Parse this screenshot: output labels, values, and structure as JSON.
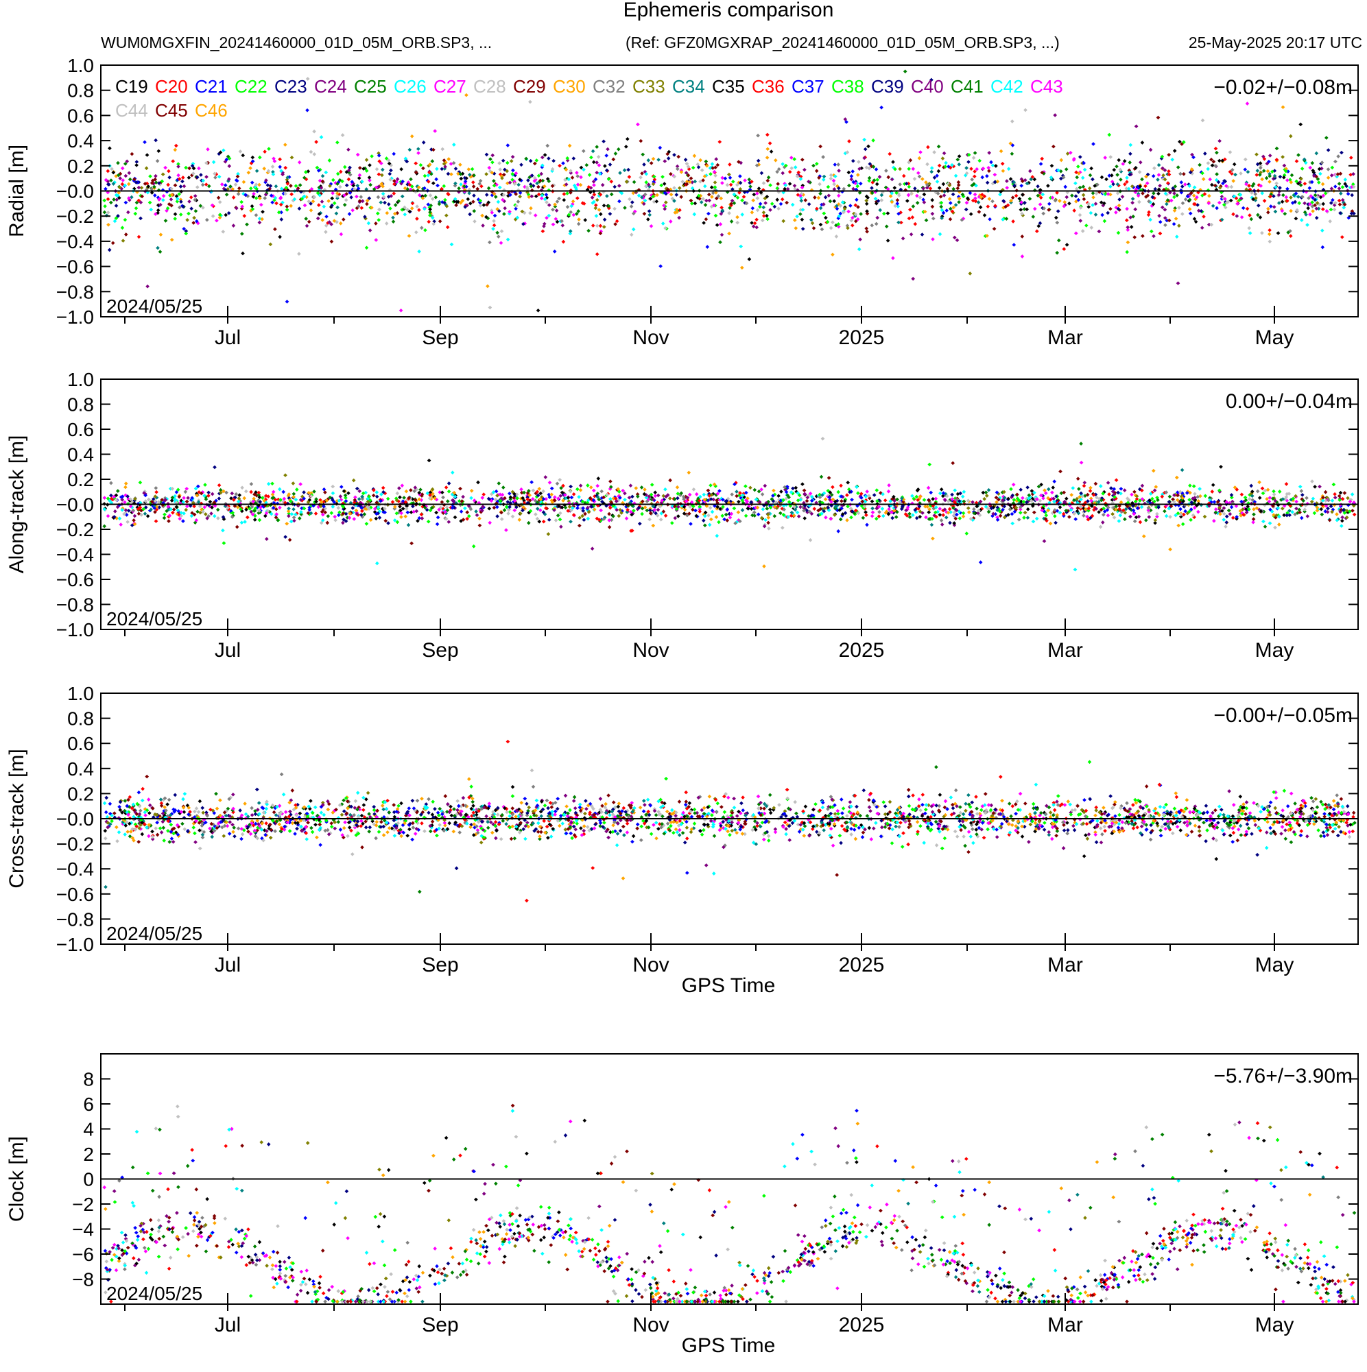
{
  "header": {
    "title": "Ephemeris comparison",
    "product": "WUM0MGXFIN_20241460000_01D_05M_ORB.SP3, ...",
    "reference": "(Ref: GFZ0MGXRAP_20241460000_01D_05M_ORB.SP3, ...)",
    "generated": "25-May-2025 20:17 UTC"
  },
  "legend": {
    "entries": [
      {
        "name": "C19",
        "color": "#000000"
      },
      {
        "name": "C20",
        "color": "#ff0000"
      },
      {
        "name": "C21",
        "color": "#0000ff"
      },
      {
        "name": "C22",
        "color": "#00ff00"
      },
      {
        "name": "C23",
        "color": "#000080"
      },
      {
        "name": "C24",
        "color": "#800080"
      },
      {
        "name": "C25",
        "color": "#008000"
      },
      {
        "name": "C26",
        "color": "#00ffff"
      },
      {
        "name": "C27",
        "color": "#ff00ff"
      },
      {
        "name": "C28",
        "color": "#c0c0c0"
      },
      {
        "name": "C29",
        "color": "#800000"
      },
      {
        "name": "C30",
        "color": "#ffa500"
      },
      {
        "name": "C32",
        "color": "#808080"
      },
      {
        "name": "C33",
        "color": "#808000"
      },
      {
        "name": "C34",
        "color": "#008080"
      },
      {
        "name": "C35",
        "color": "#000000"
      },
      {
        "name": "C36",
        "color": "#ff0000"
      },
      {
        "name": "C37",
        "color": "#0000ff"
      },
      {
        "name": "C38",
        "color": "#00ff00"
      },
      {
        "name": "C39",
        "color": "#000080"
      },
      {
        "name": "C40",
        "color": "#800080"
      },
      {
        "name": "C41",
        "color": "#008000"
      },
      {
        "name": "C42",
        "color": "#00ffff"
      },
      {
        "name": "C43",
        "color": "#ff00ff"
      },
      {
        "name": "C44",
        "color": "#c0c0c0"
      },
      {
        "name": "C45",
        "color": "#800000"
      },
      {
        "name": "C46",
        "color": "#ffa500"
      }
    ]
  },
  "chart_data": [
    {
      "type": "scatter",
      "ylabel": "Radial [m]",
      "xlabel": "",
      "ylim": [
        -1.0,
        1.0
      ],
      "yticks": [
        "1.0",
        "0.8",
        "0.6",
        "0.4",
        "0.2",
        "-0.0",
        "-0.2",
        "-0.4",
        "-0.6",
        "-0.8",
        "-1.0"
      ],
      "xtick_labels": [
        "Jul",
        "Sep",
        "Nov",
        "2025",
        "Mar",
        "May"
      ],
      "xlim": [
        "2024-05-25",
        "2025-05-25"
      ],
      "start_label": "2024/05/25",
      "stat": "-0.02+/-0.08m",
      "spread_m": 0.16
    },
    {
      "type": "scatter",
      "ylabel": "Along-track [m]",
      "xlabel": "",
      "ylim": [
        -1.0,
        1.0
      ],
      "yticks": [
        "1.0",
        "0.8",
        "0.6",
        "0.4",
        "0.2",
        "-0.0",
        "-0.2",
        "-0.4",
        "-0.6",
        "-0.8",
        "-1.0"
      ],
      "xtick_labels": [
        "Jul",
        "Sep",
        "Nov",
        "2025",
        "Mar",
        "May"
      ],
      "xlim": [
        "2024-05-25",
        "2025-05-25"
      ],
      "start_label": "2024/05/25",
      "stat": "0.00+/-0.04m",
      "spread_m": 0.07
    },
    {
      "type": "scatter",
      "ylabel": "Cross-track [m]",
      "xlabel": "GPS Time",
      "ylim": [
        -1.0,
        1.0
      ],
      "yticks": [
        "1.0",
        "0.8",
        "0.6",
        "0.4",
        "0.2",
        "-0.0",
        "-0.2",
        "-0.4",
        "-0.6",
        "-0.8",
        "-1.0"
      ],
      "xtick_labels": [
        "Jul",
        "Sep",
        "Nov",
        "2025",
        "Mar",
        "May"
      ],
      "xlim": [
        "2024-05-25",
        "2025-05-25"
      ],
      "start_label": "2024/05/25",
      "stat": "-0.00+/-0.05m",
      "spread_m": 0.08
    },
    {
      "type": "scatter",
      "ylabel": "Clock [m]",
      "xlabel": "GPS Time",
      "ylim": [
        -10,
        10
      ],
      "yticks": [
        "8",
        "6",
        "4",
        "2",
        "0",
        "-2",
        "-4",
        "-6",
        "-8"
      ],
      "xtick_labels": [
        "Jul",
        "Sep",
        "Nov",
        "2025",
        "Mar",
        "May"
      ],
      "xlim": [
        "2024-05-25",
        "2025-05-25"
      ],
      "start_label": "2024/05/25",
      "stat": "-5.76+/-3.90m"
    }
  ]
}
